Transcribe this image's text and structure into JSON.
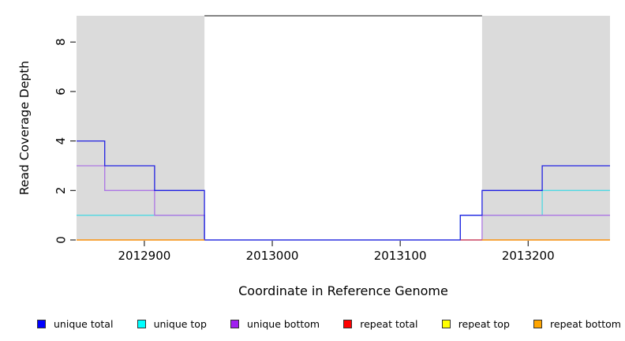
{
  "figure": {
    "background": "#ffffff"
  },
  "chart_data": {
    "type": "line",
    "subtype": "step-coverage",
    "title": "",
    "xlabel": "Coordinate in Reference Genome",
    "ylabel": "Read Coverage Depth",
    "xlim": [
      2012847,
      2013264
    ],
    "ylim": [
      0,
      9.06
    ],
    "xticks": [
      2012900,
      2013000,
      2013100,
      2013200
    ],
    "yticks": [
      0,
      2,
      4,
      6,
      8
    ],
    "grid": false,
    "legend_position": "bottom",
    "axis_color": "#000000",
    "shaded_regions": {
      "color": "#DBDBDB",
      "regions": [
        [
          2012847,
          2012947
        ],
        [
          2013164,
          2013264
        ]
      ]
    },
    "top_segment": {
      "x": [
        2012947,
        2013164
      ],
      "y": 9.06,
      "color": "#5A5A5A"
    },
    "series": [
      {
        "name": "unique total",
        "color": "#2121E2",
        "legend_color": "#0000FF",
        "z": 3,
        "segments": [
          [
            [
              2012847,
              4
            ],
            [
              2012869,
              3
            ],
            [
              2012908,
              2
            ],
            [
              2012947,
              0
            ],
            [
              2013147,
              1
            ],
            [
              2013164,
              2
            ],
            [
              2013211,
              3
            ],
            [
              2013264,
              3
            ]
          ]
        ]
      },
      {
        "name": "unique top",
        "color": "#4FD8E2",
        "legend_color": "#00FFFF",
        "z": 1,
        "segments": [
          [
            [
              2012847,
              1
            ],
            [
              2012947,
              0
            ],
            [
              2013147,
              1
            ],
            [
              2013211,
              2
            ],
            [
              2013264,
              2
            ]
          ]
        ]
      },
      {
        "name": "unique bottom",
        "color": "#AC76E4",
        "legend_color": "#A020F0",
        "z": 2,
        "segments": [
          [
            [
              2012847,
              3
            ],
            [
              2012869,
              2
            ],
            [
              2012908,
              1
            ],
            [
              2012947,
              0
            ],
            [
              2013164,
              1
            ],
            [
              2013264,
              1
            ]
          ]
        ]
      },
      {
        "name": "repeat total",
        "color": "#CC3344",
        "legend_color": "#FF0000",
        "z": 4,
        "segments": [
          [
            [
              2012847,
              0
            ],
            [
              2012947,
              0
            ]
          ],
          [
            [
              2013147,
              0
            ],
            [
              2013264,
              0
            ]
          ]
        ]
      },
      {
        "name": "repeat top",
        "color": "#E8E800",
        "legend_color": "#FFFF00",
        "z": 5,
        "segments": [
          [
            [
              2012847,
              0
            ],
            [
              2012947,
              0
            ]
          ],
          [
            [
              2013164,
              0
            ],
            [
              2013264,
              0
            ]
          ]
        ]
      },
      {
        "name": "repeat bottom",
        "color": "#FF9212",
        "legend_color": "#FFA500",
        "z": 6,
        "segments": [
          [
            [
              2012847,
              0
            ],
            [
              2012947,
              0
            ]
          ],
          [
            [
              2013164,
              0
            ],
            [
              2013264,
              0
            ]
          ]
        ]
      }
    ]
  }
}
